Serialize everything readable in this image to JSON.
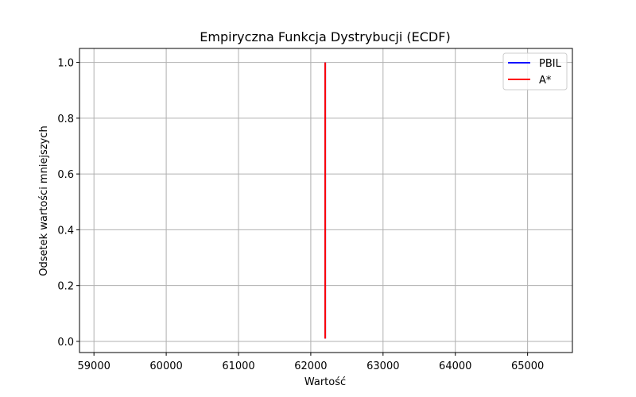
{
  "chart_data": {
    "type": "line",
    "title": "Empiryczna Funkcja Dystrybucji (ECDF)",
    "xlabel": "Wartość",
    "ylabel": "Odsetek wartości mniejszych",
    "xlim": [
      58800,
      65620
    ],
    "ylim": [
      -0.04,
      1.05
    ],
    "xticks": [
      59000,
      60000,
      61000,
      62000,
      63000,
      64000,
      65000
    ],
    "yticks": [
      0.0,
      0.2,
      0.4,
      0.6,
      0.8,
      1.0
    ],
    "ytick_labels": [
      "0.0",
      "0.2",
      "0.4",
      "0.6",
      "0.8",
      "1.0"
    ],
    "grid": true,
    "legend_position": "top-right",
    "series": [
      {
        "name": "PBIL",
        "color": "#0000ff",
        "x": [
          62200,
          62200
        ],
        "y": [
          0.01,
          1.0
        ]
      },
      {
        "name": "A*",
        "color": "#ff0000",
        "x": [
          62200,
          62200
        ],
        "y": [
          0.01,
          1.0
        ]
      }
    ]
  }
}
